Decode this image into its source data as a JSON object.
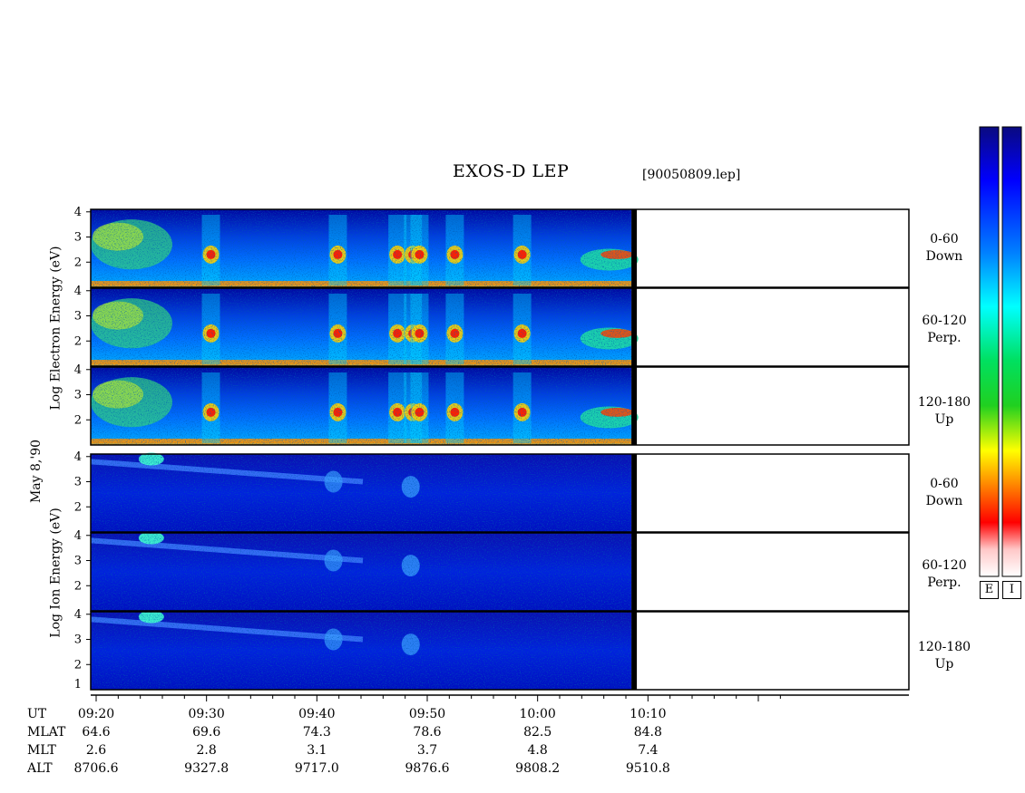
{
  "header": {
    "title": "EXOS-D LEP",
    "file": "[90050809.lep]"
  },
  "date_label": "May  8,'90",
  "electron": {
    "axis_label": "Log  Electron  Energy  (eV)",
    "panels": [
      {
        "line1": "0-60",
        "line2": "Down"
      },
      {
        "line1": "60-120",
        "line2": "Perp."
      },
      {
        "line1": "120-180",
        "line2": "Up"
      }
    ]
  },
  "ion": {
    "axis_label": "Log  Ion  Energy  (eV)",
    "panels": [
      {
        "line1": "0-60",
        "line2": "Down"
      },
      {
        "line1": "60-120",
        "line2": "Perp."
      },
      {
        "line1": "120-180",
        "line2": "Up"
      }
    ]
  },
  "colorbar": {
    "labels": [
      "E",
      "I"
    ],
    "colors": [
      "#0a0a80",
      "#0000ff",
      "#0080ff",
      "#00ffff",
      "#00e060",
      "#20d020",
      "#ffff00",
      "#ff8000",
      "#ff0000",
      "#ffc8c8",
      "#ffffff"
    ]
  },
  "footer": {
    "row_labels": [
      "UT",
      "MLAT",
      "MLT",
      "ALT"
    ],
    "columns": [
      {
        "ut": "09:20",
        "mlat": "64.6",
        "mlt": "2.6",
        "alt": "8706.6"
      },
      {
        "ut": "09:30",
        "mlat": "69.6",
        "mlt": "2.8",
        "alt": "9327.8"
      },
      {
        "ut": "09:40",
        "mlat": "74.3",
        "mlt": "3.1",
        "alt": "9717.0"
      },
      {
        "ut": "09:50",
        "mlat": "78.6",
        "mlt": "3.7",
        "alt": "9876.6"
      },
      {
        "ut": "10:00",
        "mlat": "82.5",
        "mlt": "4.8",
        "alt": "9808.2"
      },
      {
        "ut": "10:10",
        "mlat": "84.8",
        "mlt": "7.4",
        "alt": "9510.8"
      }
    ]
  },
  "chart_data": {
    "type": "heatmap",
    "title": "EXOS-D LEP",
    "subtitle": "[90050809.lep]",
    "xlabel": "UT",
    "x_ticks": [
      "09:20",
      "09:30",
      "09:40",
      "09:50",
      "10:00",
      "10:10"
    ],
    "x_range_minutes": [
      0,
      60
    ],
    "data_end_minute": 48.5,
    "electron_panels": {
      "ylabel": "Log  Electron  Energy  (eV)",
      "y_ticks": [
        2,
        3,
        4
      ],
      "ylim": [
        1,
        4.1
      ],
      "pitch_angles": [
        "0-60 Down",
        "60-120 Perp.",
        "120-180 Up"
      ],
      "bursts_minutes": [
        10.4,
        21.9,
        27.3,
        28.7,
        29.3,
        32.5,
        38.6
      ]
    },
    "ion_panels": {
      "ylabel": "Log  Ion  Energy  (eV)",
      "y_ticks": [
        2,
        3,
        4
      ],
      "ylim": [
        1,
        4.1
      ],
      "pitch_angles": [
        "0-60 Down",
        "60-120 Perp.",
        "120-180 Up"
      ]
    }
  }
}
